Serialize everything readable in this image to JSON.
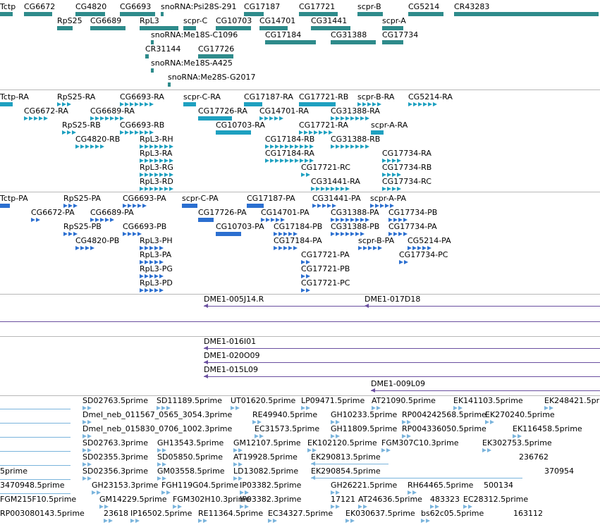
{
  "colors": {
    "gene": "#2e8b8b",
    "mrna": "#1ea0c0",
    "protein": "#2b6fd0",
    "clone": "#6a4fa0",
    "est": "#7ab4dc",
    "separator": "#b8b8b8"
  },
  "tracks": [
    {
      "name": "genes",
      "features": [
        {
          "label": "Tctp"
        },
        {
          "label": "CG6672"
        },
        {
          "label": "CG4820"
        },
        {
          "label": "CG6693"
        },
        {
          "label": "snoRNA:Psi28S-291"
        },
        {
          "label": "CG17187"
        },
        {
          "label": "CG17721"
        },
        {
          "label": "scpr-B"
        },
        {
          "label": "CG5214"
        },
        {
          "label": "CR43283"
        },
        {
          "label": "RpS25"
        },
        {
          "label": "CG6689"
        },
        {
          "label": "RpL3"
        },
        {
          "label": "scpr-C"
        },
        {
          "label": "CG10703"
        },
        {
          "label": "CG14701"
        },
        {
          "label": "CG31441"
        },
        {
          "label": "scpr-A"
        },
        {
          "label": "snoRNA:Me18S-C1096"
        },
        {
          "label": "CG17184"
        },
        {
          "label": "CG31388"
        },
        {
          "label": "CG17734"
        },
        {
          "label": "CR31144"
        },
        {
          "label": "CG17726"
        },
        {
          "label": "snoRNA:Me18S-A425"
        },
        {
          "label": "snoRNA:Me28S-G2017"
        }
      ]
    },
    {
      "name": "transcripts",
      "features": [
        {
          "label": "Tctp-RA"
        },
        {
          "label": "RpS25-RA"
        },
        {
          "label": "CG6693-RA"
        },
        {
          "label": "scpr-C-RA"
        },
        {
          "label": "CG17187-RA"
        },
        {
          "label": "CG17721-RB"
        },
        {
          "label": "scpr-B-RA"
        },
        {
          "label": "CG5214-RA"
        },
        {
          "label": "CG6672-RA"
        },
        {
          "label": "CG6689-RA"
        },
        {
          "label": "CG17726-RA"
        },
        {
          "label": "CG14701-RA"
        },
        {
          "label": "CG31388-RA"
        },
        {
          "label": "RpS25-RB"
        },
        {
          "label": "CG6693-RB"
        },
        {
          "label": "CG10703-RA"
        },
        {
          "label": "CG17721-RA"
        },
        {
          "label": "scpr-A-RA"
        },
        {
          "label": "CG4820-RB"
        },
        {
          "label": "RpL3-RH"
        },
        {
          "label": "CG17184-RB"
        },
        {
          "label": "CG31388-RB"
        },
        {
          "label": "RpL3-RA"
        },
        {
          "label": "CG17184-RA"
        },
        {
          "label": "CG17734-RA"
        },
        {
          "label": "RpL3-RG"
        },
        {
          "label": "CG17721-RC"
        },
        {
          "label": "CG17734-RB"
        },
        {
          "label": "RpL3-RD"
        },
        {
          "label": "CG31441-RA"
        },
        {
          "label": "CG17734-RC"
        }
      ]
    },
    {
      "name": "proteins",
      "features": [
        {
          "label": "Tctp-PA"
        },
        {
          "label": "RpS25-PA"
        },
        {
          "label": "CG6693-PA"
        },
        {
          "label": "scpr-C-PA"
        },
        {
          "label": "CG17187-PA"
        },
        {
          "label": "CG31441-PA"
        },
        {
          "label": "scpr-A-PA"
        },
        {
          "label": "CG6672-PA"
        },
        {
          "label": "CG6689-PA"
        },
        {
          "label": "CG17726-PA"
        },
        {
          "label": "CG14701-PA"
        },
        {
          "label": "CG31388-PA"
        },
        {
          "label": "CG17734-PB"
        },
        {
          "label": "RpS25-PB"
        },
        {
          "label": "CG6693-PB"
        },
        {
          "label": "CG10703-PA"
        },
        {
          "label": "CG17184-PB"
        },
        {
          "label": "CG31388-PB"
        },
        {
          "label": "CG17734-PA"
        },
        {
          "label": "CG4820-PB"
        },
        {
          "label": "RpL3-PH"
        },
        {
          "label": "CG17184-PA"
        },
        {
          "label": "scpr-B-PA"
        },
        {
          "label": "CG5214-PA"
        },
        {
          "label": "RpL3-PA"
        },
        {
          "label": "CG17721-PA"
        },
        {
          "label": "CG17734-PC"
        },
        {
          "label": "RpL3-PG"
        },
        {
          "label": "CG17721-PB"
        },
        {
          "label": "RpL3-PD"
        },
        {
          "label": "CG17721-PC"
        }
      ]
    },
    {
      "name": "clones-a",
      "features": [
        {
          "label": "DME1-005J14.R"
        },
        {
          "label": "DME1-017D18"
        }
      ]
    },
    {
      "name": "clones-b",
      "features": [
        {
          "label": "DME1-016I01"
        },
        {
          "label": "DME1-020O09"
        },
        {
          "label": "DME1-015L09"
        },
        {
          "label": "DME1-009L09"
        }
      ]
    },
    {
      "name": "ests",
      "features": [
        {
          "label": "SD02763.5prime"
        },
        {
          "label": "SD11189.5prime"
        },
        {
          "label": "UT01620.5prime"
        },
        {
          "label": "LP09471.5prime"
        },
        {
          "label": "AT21090.5prime"
        },
        {
          "label": "EK141103.5prime"
        },
        {
          "label": "EK248421.5prime"
        },
        {
          "label": "Dmel_neb_011567_0565_3054.3prime"
        },
        {
          "label": "RE49940.5prime"
        },
        {
          "label": "GH10233.5prime"
        },
        {
          "label": "RP004242568.5prime"
        },
        {
          "label": "EK270240.5prime"
        },
        {
          "label": "Dmel_neb_015830_0706_1002.3prime"
        },
        {
          "label": "EC31573.5prime"
        },
        {
          "label": "GH11809.5prime"
        },
        {
          "label": "RP004336050.5prime"
        },
        {
          "label": "EK116458.5prime"
        },
        {
          "label": "SD02763.3prime"
        },
        {
          "label": "GH13543.5prime"
        },
        {
          "label": "GM12107.5prime"
        },
        {
          "label": "EK102120.5prime"
        },
        {
          "label": "FGM307C10.3prime"
        },
        {
          "label": "EK302753.5prime"
        },
        {
          "label": "SD02355.3prime"
        },
        {
          "label": "SD05850.5prime"
        },
        {
          "label": "AT19928.5prime"
        },
        {
          "label": "EK290813.5prime"
        },
        {
          "label": "236762"
        },
        {
          "label": "5prime"
        },
        {
          "label": "SD02356.3prime"
        },
        {
          "label": "GM03558.5prime"
        },
        {
          "label": "LD13082.5prime"
        },
        {
          "label": "EK290854.5prime"
        },
        {
          "label": "370954"
        },
        {
          "label": "3470948.5prime"
        },
        {
          "label": "GH23153.3prime"
        },
        {
          "label": "FGH119G04.5prime"
        },
        {
          "label": "IP03382.5prime"
        },
        {
          "label": "GH26221.5prime"
        },
        {
          "label": "RH64465.5prime"
        },
        {
          "label": "500134"
        },
        {
          "label": "FGM215F10.5prime"
        },
        {
          "label": "GM14229.5prime"
        },
        {
          "label": "FGM302H10.3prime"
        },
        {
          "label": "IP03382.3prime"
        },
        {
          "label": "17121"
        },
        {
          "label": "AT24636.5prime"
        },
        {
          "label": "483323"
        },
        {
          "label": "EC28312.5prime"
        },
        {
          "label": "RP003080143.5prime"
        },
        {
          "label": "23618"
        },
        {
          "label": "IP16502.5prime"
        },
        {
          "label": "RE11364.5prime"
        },
        {
          "label": "EC34327.5prime"
        },
        {
          "label": "EK030637.5prime"
        },
        {
          "label": "bs62c05.5prime"
        },
        {
          "label": "163112"
        }
      ]
    }
  ]
}
